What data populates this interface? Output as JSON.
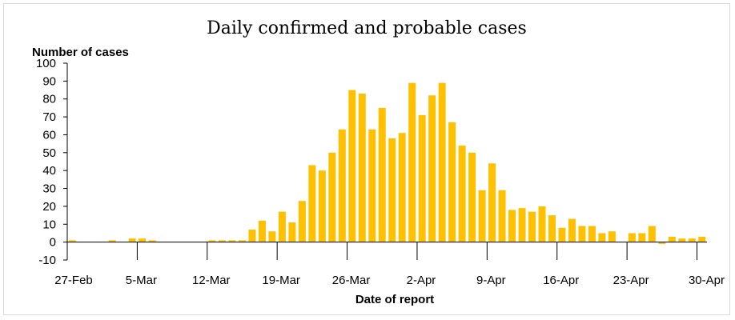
{
  "chart_data": {
    "type": "bar",
    "title": "Daily confirmed and probable cases",
    "ylabel": "Number of cases",
    "xlabel": "Date of report",
    "ylim": [
      -10,
      100
    ],
    "yticks": [
      -10,
      0,
      10,
      20,
      30,
      40,
      50,
      60,
      70,
      80,
      90,
      100
    ],
    "x_tick_labels": [
      "27-Feb",
      "5-Mar",
      "12-Mar",
      "19-Mar",
      "26-Mar",
      "2-Apr",
      "9-Apr",
      "16-Apr",
      "23-Apr",
      "30-Apr"
    ],
    "bar_color": "#ffc000",
    "series": [
      {
        "name": "Daily confirmed and probable cases",
        "categories": [
          "27-Feb",
          "28-Feb",
          "29-Feb",
          "1-Mar",
          "2-Mar",
          "3-Mar",
          "4-Mar",
          "5-Mar",
          "6-Mar",
          "7-Mar",
          "8-Mar",
          "9-Mar",
          "10-Mar",
          "11-Mar",
          "12-Mar",
          "13-Mar",
          "14-Mar",
          "15-Mar",
          "16-Mar",
          "17-Mar",
          "18-Mar",
          "19-Mar",
          "20-Mar",
          "21-Mar",
          "22-Mar",
          "23-Mar",
          "24-Mar",
          "25-Mar",
          "26-Mar",
          "27-Mar",
          "28-Mar",
          "29-Mar",
          "30-Mar",
          "31-Mar",
          "1-Apr",
          "2-Apr",
          "3-Apr",
          "4-Apr",
          "5-Apr",
          "6-Apr",
          "7-Apr",
          "8-Apr",
          "9-Apr",
          "10-Apr",
          "11-Apr",
          "12-Apr",
          "13-Apr",
          "14-Apr",
          "15-Apr",
          "16-Apr",
          "17-Apr",
          "18-Apr",
          "19-Apr",
          "20-Apr",
          "21-Apr",
          "22-Apr",
          "23-Apr",
          "24-Apr",
          "25-Apr",
          "26-Apr",
          "27-Apr",
          "28-Apr",
          "29-Apr",
          "30-Apr"
        ],
        "values": [
          1,
          0,
          0,
          0,
          1,
          0,
          2,
          2,
          1,
          0,
          0,
          0,
          0,
          0,
          1,
          1,
          1,
          1,
          7,
          12,
          6,
          17,
          11,
          23,
          43,
          40,
          50,
          63,
          85,
          83,
          63,
          75,
          58,
          61,
          89,
          71,
          82,
          89,
          67,
          54,
          50,
          29,
          44,
          29,
          18,
          19,
          17,
          20,
          15,
          8,
          13,
          9,
          9,
          5,
          6,
          0,
          5,
          5,
          9,
          -1,
          3,
          2,
          2,
          3
        ]
      }
    ]
  }
}
